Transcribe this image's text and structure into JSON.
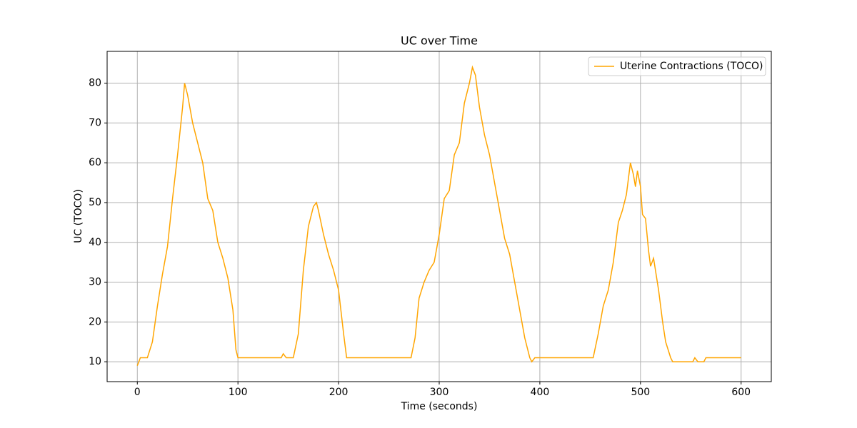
{
  "chart_data": {
    "type": "line",
    "title": "UC over Time",
    "x_label": "Time (seconds)",
    "y_label": "UC (TOCO)",
    "x": [
      0,
      3,
      10,
      15,
      20,
      25,
      30,
      35,
      40,
      45,
      47,
      50,
      55,
      60,
      65,
      70,
      75,
      80,
      85,
      90,
      95,
      98,
      100,
      110,
      120,
      130,
      143,
      145,
      148,
      155,
      160,
      165,
      170,
      175,
      178,
      180,
      185,
      190,
      195,
      200,
      205,
      208,
      220,
      240,
      260,
      272,
      276,
      280,
      285,
      290,
      295,
      300,
      305,
      310,
      315,
      320,
      325,
      330,
      333,
      336,
      340,
      345,
      350,
      355,
      360,
      365,
      370,
      375,
      380,
      385,
      390,
      392,
      395,
      400,
      420,
      440,
      453,
      458,
      463,
      468,
      473,
      478,
      482,
      486,
      490,
      493,
      495,
      497,
      500,
      502,
      505,
      508,
      510,
      513,
      518,
      522,
      525,
      530,
      532,
      540,
      552,
      554,
      557,
      563,
      565,
      580,
      590,
      600
    ],
    "series": [
      {
        "name": "Uterine Contractions (TOCO)",
        "color": "#ffa500",
        "values": [
          9,
          11,
          11,
          15,
          24,
          32,
          39,
          51,
          62,
          74,
          80,
          77,
          70,
          65,
          60,
          51,
          48,
          40,
          36,
          31,
          23,
          13,
          11,
          11,
          11,
          11,
          11,
          12,
          11,
          11,
          17,
          33,
          44,
          49,
          50,
          48,
          42,
          37,
          33,
          28,
          17,
          11,
          11,
          11,
          11,
          11,
          16,
          26,
          30,
          33,
          35,
          42,
          51,
          53,
          62,
          65,
          75,
          80,
          84,
          82,
          74,
          67,
          62,
          55,
          48,
          41,
          37,
          30,
          23,
          16,
          11,
          10,
          11,
          11,
          11,
          11,
          11,
          17,
          24,
          28,
          35,
          45,
          48,
          52,
          60,
          57,
          54,
          58,
          54,
          47,
          46,
          38,
          34,
          36,
          28,
          20,
          15,
          11,
          10,
          10,
          10,
          11,
          10,
          10,
          11,
          11,
          11,
          11
        ]
      }
    ],
    "xlim": [
      -30,
      630
    ],
    "ylim": [
      5,
      88
    ],
    "xticks": [
      0,
      100,
      200,
      300,
      400,
      500,
      600
    ],
    "yticks": [
      10,
      20,
      30,
      40,
      50,
      60,
      70,
      80
    ],
    "grid": true,
    "legend": "upper right"
  }
}
